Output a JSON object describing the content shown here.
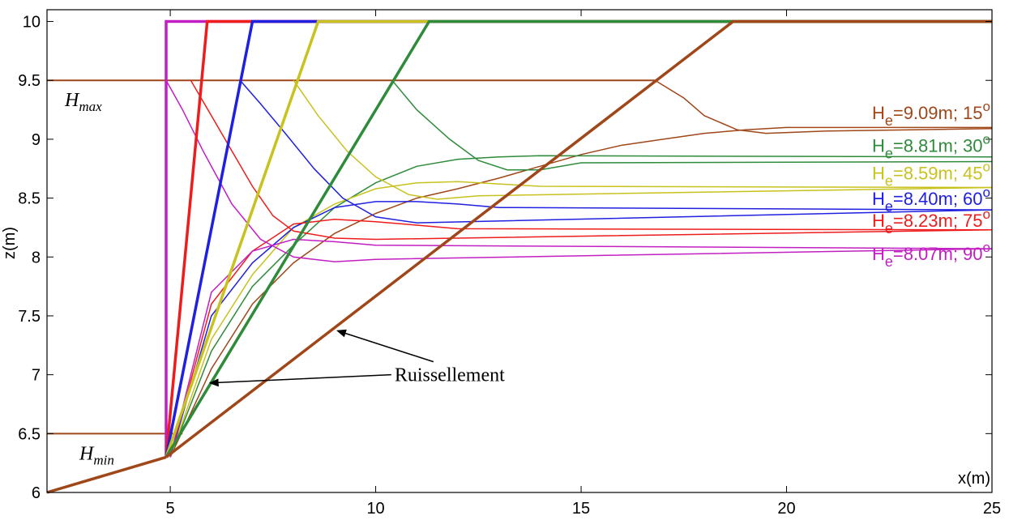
{
  "chart_data": {
    "type": "line",
    "xlabel": "x(m)",
    "ylabel": "z(m)",
    "xlim": [
      2,
      25
    ],
    "ylim": [
      6,
      10.1
    ],
    "x_ticks": [
      5,
      10,
      15,
      20,
      25
    ],
    "x_tick_labels": [
      "5",
      "10",
      "15",
      "20",
      "25"
    ],
    "y_ticks": [
      6,
      6.5,
      7,
      7.5,
      8,
      8.5,
      9,
      9.5,
      10
    ],
    "y_tick_labels": [
      "6",
      "6.5",
      "7",
      "7.5",
      "8",
      "8.5",
      "9",
      "9.5",
      "10"
    ],
    "grid": false,
    "levels": {
      "hmax": {
        "base": "H",
        "sub": "max",
        "y": 9.5
      },
      "hmin": {
        "base": "H",
        "sub": "min",
        "y": 6.5
      }
    },
    "annotation": {
      "text": "Ruissellement",
      "arrow_targets": [
        [
          5.9,
          6.93
        ],
        [
          9.0,
          7.4
        ]
      ]
    },
    "ground": {
      "x": [
        2,
        4.9,
        5.0,
        25
      ],
      "y": [
        6.0,
        6.3,
        6.3,
        6.3
      ]
    },
    "series": [
      {
        "angle": 15,
        "label": "=9.09m; 15",
        "label_base": "H",
        "label_sub": "e",
        "label_sup": "o",
        "color": "#a0471a",
        "slope": {
          "x": [
            4.9,
            18.7,
            25
          ],
          "y": [
            6.3,
            10.0,
            10.0
          ]
        },
        "profile": {
          "x": [
            2,
            16.8,
            17.5,
            18.0,
            18.8,
            19.5,
            21.0,
            25
          ],
          "y": [
            9.5,
            9.5,
            9.35,
            9.2,
            9.08,
            9.05,
            9.07,
            9.09
          ]
        },
        "rise": {
          "x": [
            5.0,
            6.0,
            7.0,
            8.0,
            9.0,
            10.0,
            11.0,
            12.0,
            13.0,
            14.0,
            15.0,
            16.0,
            17.0,
            18.0,
            19.0,
            20.0,
            25.0
          ],
          "y": [
            6.3,
            7.05,
            7.6,
            7.95,
            8.2,
            8.37,
            8.5,
            8.58,
            8.67,
            8.77,
            8.87,
            8.95,
            9.0,
            9.05,
            9.08,
            9.1,
            9.1
          ]
        }
      },
      {
        "angle": 30,
        "label": "=8.81m; 30",
        "label_base": "H",
        "label_sub": "e",
        "label_sup": "o",
        "color": "#2e8b3a",
        "slope": {
          "x": [
            4.9,
            11.3,
            25
          ],
          "y": [
            6.3,
            10.0,
            10.0
          ]
        },
        "profile": {
          "x": [
            10.4,
            11.0,
            11.8,
            12.5,
            13.2,
            14.0,
            15.0,
            25
          ],
          "y": [
            9.5,
            9.25,
            9.0,
            8.82,
            8.74,
            8.74,
            8.8,
            8.81
          ]
        },
        "rise": {
          "x": [
            5.0,
            6.0,
            7.0,
            8.0,
            9.0,
            10.0,
            11.0,
            12.0,
            13.0,
            14.0,
            25.0
          ],
          "y": [
            6.3,
            7.2,
            7.75,
            8.1,
            8.42,
            8.63,
            8.77,
            8.83,
            8.85,
            8.86,
            8.85
          ]
        }
      },
      {
        "angle": 45,
        "label": "=8.59m; 45",
        "label_base": "H",
        "label_sub": "e",
        "label_sup": "o",
        "color": "#c8c21e",
        "slope": {
          "x": [
            4.9,
            8.6,
            25
          ],
          "y": [
            6.3,
            10.0,
            10.0
          ]
        },
        "profile": {
          "x": [
            8.0,
            8.6,
            9.3,
            10.0,
            10.8,
            11.5,
            12.5,
            25
          ],
          "y": [
            9.5,
            9.2,
            8.9,
            8.68,
            8.53,
            8.49,
            8.52,
            8.59
          ]
        },
        "rise": {
          "x": [
            5.0,
            6.0,
            7.0,
            8.0,
            9.0,
            10.0,
            11.0,
            12.0,
            13.0,
            14.0,
            25.0
          ],
          "y": [
            6.3,
            7.3,
            7.85,
            8.25,
            8.45,
            8.58,
            8.63,
            8.64,
            8.62,
            8.6,
            8.59
          ]
        }
      },
      {
        "angle": 60,
        "label": "=8.40m; 60",
        "label_base": "H",
        "label_sub": "e",
        "label_sup": "o",
        "color": "#2020e0",
        "slope": {
          "x": [
            4.9,
            7.0,
            25
          ],
          "y": [
            6.3,
            10.0,
            10.0
          ]
        },
        "profile": {
          "x": [
            6.7,
            7.2,
            7.8,
            8.5,
            9.2,
            10.0,
            11.0,
            25
          ],
          "y": [
            9.5,
            9.3,
            9.05,
            8.75,
            8.5,
            8.34,
            8.29,
            8.4
          ]
        },
        "rise": {
          "x": [
            5.0,
            6.0,
            7.0,
            8.0,
            9.0,
            10.0,
            11.0,
            12.0,
            13.0,
            25.0
          ],
          "y": [
            6.3,
            7.5,
            7.95,
            8.25,
            8.42,
            8.47,
            8.47,
            8.45,
            8.42,
            8.4
          ]
        }
      },
      {
        "angle": 75,
        "label": "=8.23m; 75",
        "label_base": "H",
        "label_sub": "e",
        "label_sup": "o",
        "color": "#ee1c1c",
        "slope": {
          "x": [
            4.9,
            5.9,
            25
          ],
          "y": [
            6.3,
            10.0,
            10.0
          ]
        },
        "profile": {
          "x": [
            5.5,
            6.0,
            6.5,
            7.0,
            7.5,
            8.0,
            9.0,
            10.0,
            25
          ],
          "y": [
            9.5,
            9.2,
            8.9,
            8.6,
            8.35,
            8.22,
            8.16,
            8.15,
            8.23
          ]
        },
        "rise": {
          "x": [
            5.0,
            6.0,
            7.0,
            8.0,
            9.0,
            10.0,
            11.0,
            12.0,
            25.0
          ],
          "y": [
            6.3,
            7.6,
            8.05,
            8.28,
            8.32,
            8.3,
            8.27,
            8.24,
            8.23
          ]
        }
      },
      {
        "angle": 90,
        "label": "=8.07m; 90",
        "label_base": "H",
        "label_sub": "e",
        "label_sup": "o",
        "color": "#c21fc2",
        "slope": {
          "x": [
            4.9,
            4.9,
            25
          ],
          "y": [
            6.3,
            10.0,
            10.0
          ]
        },
        "profile": {
          "x": [
            4.9,
            5.3,
            5.8,
            6.5,
            7.2,
            8.0,
            9.0,
            10.0,
            25
          ],
          "y": [
            9.5,
            9.25,
            8.9,
            8.45,
            8.15,
            8.0,
            7.96,
            7.98,
            8.07
          ]
        },
        "rise": {
          "x": [
            5.0,
            6.0,
            7.0,
            8.0,
            9.0,
            10.0,
            25.0
          ],
          "y": [
            6.3,
            7.7,
            8.05,
            8.15,
            8.13,
            8.1,
            8.07
          ]
        }
      }
    ]
  }
}
